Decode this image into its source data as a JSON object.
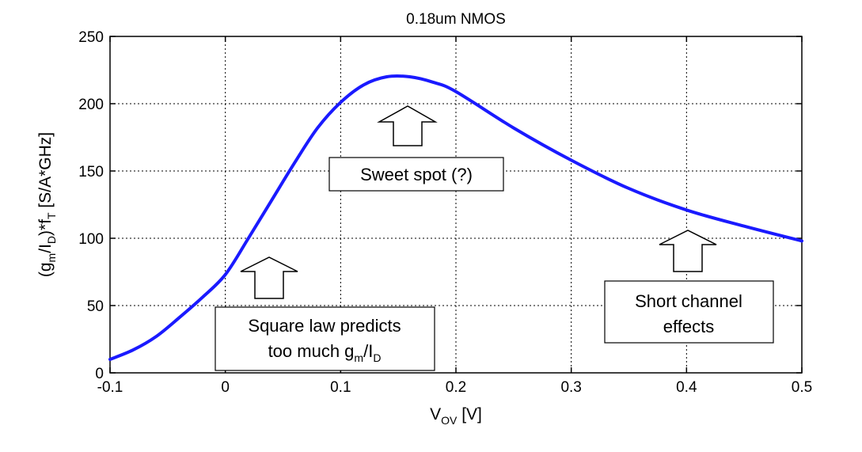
{
  "chart_data": {
    "type": "line",
    "title": "0.18um NMOS",
    "xlabel": {
      "main": "V",
      "sub": "OV",
      "unit": " [V]"
    },
    "ylabel": {
      "parts": [
        "(g",
        "m",
        "/I",
        "D",
        ")*f",
        "T",
        " [S/A*GHz]"
      ]
    },
    "xlim": [
      -0.1,
      0.5
    ],
    "ylim": [
      0,
      250
    ],
    "xticks": [
      -0.1,
      0,
      0.1,
      0.2,
      0.3,
      0.4,
      0.5
    ],
    "xtick_labels": [
      "-0.1",
      "0",
      "0.1",
      "0.2",
      "0.3",
      "0.4",
      "0.5"
    ],
    "yticks": [
      0,
      50,
      100,
      150,
      200,
      250
    ],
    "ytick_labels": [
      "0",
      "50",
      "100",
      "150",
      "200",
      "250"
    ],
    "grid": true,
    "line_color": "#1a1aff",
    "series": [
      {
        "x": [
          -0.1,
          -0.08,
          -0.06,
          -0.04,
          -0.02,
          0,
          0.02,
          0.04,
          0.06,
          0.08,
          0.1,
          0.12,
          0.14,
          0.16,
          0.18,
          0.2,
          0.25,
          0.3,
          0.35,
          0.4,
          0.45,
          0.5
        ],
        "y": [
          10,
          17,
          27,
          41,
          56,
          73,
          100,
          128,
          156,
          182,
          201,
          214,
          220,
          220,
          216,
          209,
          182,
          158,
          137,
          121,
          109,
          98
        ]
      }
    ],
    "annotations": [
      {
        "id": "sweet",
        "lines": [
          "Sweet spot (?)"
        ]
      },
      {
        "id": "square",
        "lines": [
          "Square law predicts",
          "too much g_m/I_D"
        ],
        "rich": [
          "too much g",
          "m",
          "/I",
          "D"
        ]
      },
      {
        "id": "short",
        "lines": [
          "Short channel",
          "effects"
        ]
      }
    ]
  }
}
